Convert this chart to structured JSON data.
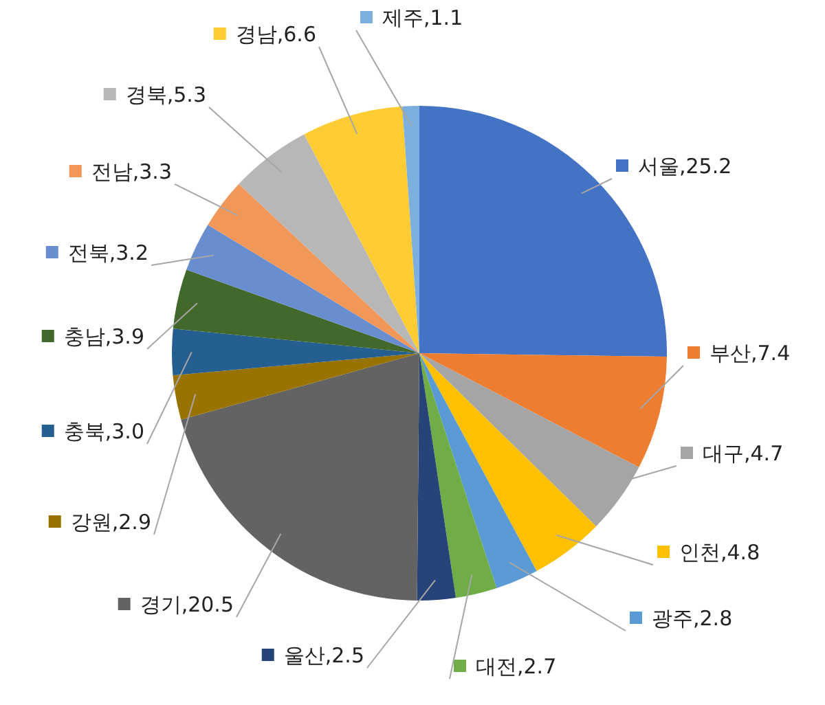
{
  "chart_data": {
    "type": "pie",
    "categories": [
      "서울",
      "부산",
      "대구",
      "인천",
      "광주",
      "대전",
      "울산",
      "경기",
      "강원",
      "충북",
      "충남",
      "전북",
      "전남",
      "경북",
      "경남",
      "제주"
    ],
    "values": [
      25.2,
      7.4,
      4.7,
      4.8,
      2.8,
      2.7,
      2.5,
      20.5,
      2.9,
      3.0,
      3.9,
      3.2,
      3.3,
      5.3,
      6.6,
      1.1
    ],
    "colors": [
      "#4472c4",
      "#ed7d31",
      "#a5a5a5",
      "#ffc000",
      "#5b9bd5",
      "#70ad47",
      "#264478",
      "#636363",
      "#997300",
      "#255e91",
      "#43682b",
      "#698ed0",
      "#f1975a",
      "#b7b7b7",
      "#ffcd33",
      "#7cafdd"
    ],
    "legend": "right",
    "value_labels": [
      "25.2",
      "7.4",
      "4.7",
      "4.8",
      "2.8",
      "2.7",
      "2.5",
      "20.5",
      "2.9",
      "3.0",
      "3.9",
      "3.2",
      "3.3",
      "5.3",
      "6.6",
      "1.1"
    ]
  }
}
